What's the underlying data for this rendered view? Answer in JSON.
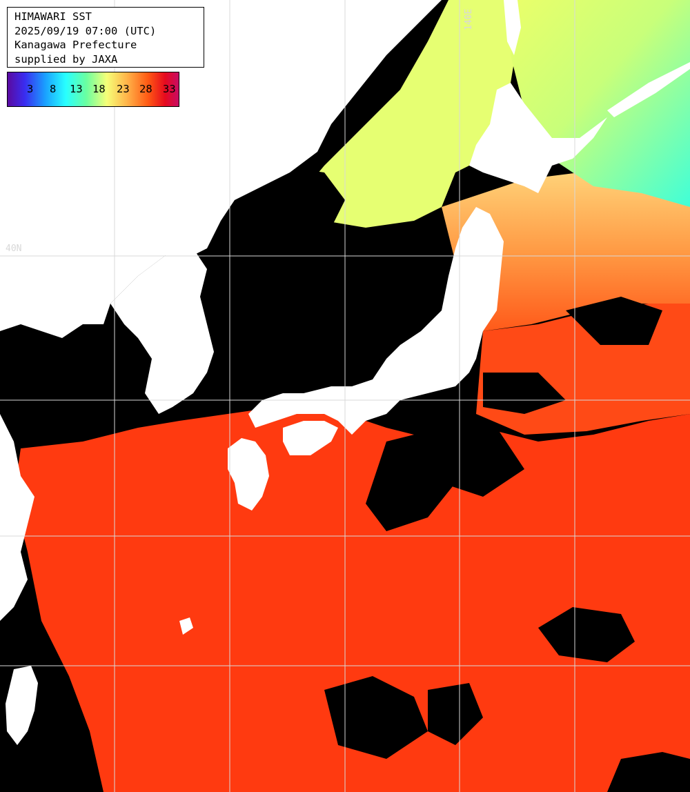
{
  "map": {
    "title": "HIMAWARI SST",
    "timestamp": "2025/09/19 07:00 (UTC)",
    "region": "Kanagawa Prefecture",
    "credit": "supplied by JAXA",
    "legend": {
      "ticks": [
        "3",
        "8",
        "13",
        "18",
        "23",
        "28",
        "33"
      ],
      "colors": [
        "#5a0aa0",
        "#3a2cf0",
        "#1aa0ff",
        "#28ffff",
        "#6affa0",
        "#f6ff78",
        "#ffb248",
        "#ff5a14",
        "#e60a1e",
        "#c80c64"
      ]
    },
    "grid_labels": {
      "lat": "40N",
      "lon": "140E"
    },
    "colors": {
      "land": "#ffffff",
      "cloud": "#000000",
      "grid": "#d8d8d8",
      "sea_warm": "#ff3a10",
      "sea_orange": "#ff9a3c",
      "sea_yellow": "#eaff70",
      "sea_cyan": "#40ffd0"
    }
  }
}
